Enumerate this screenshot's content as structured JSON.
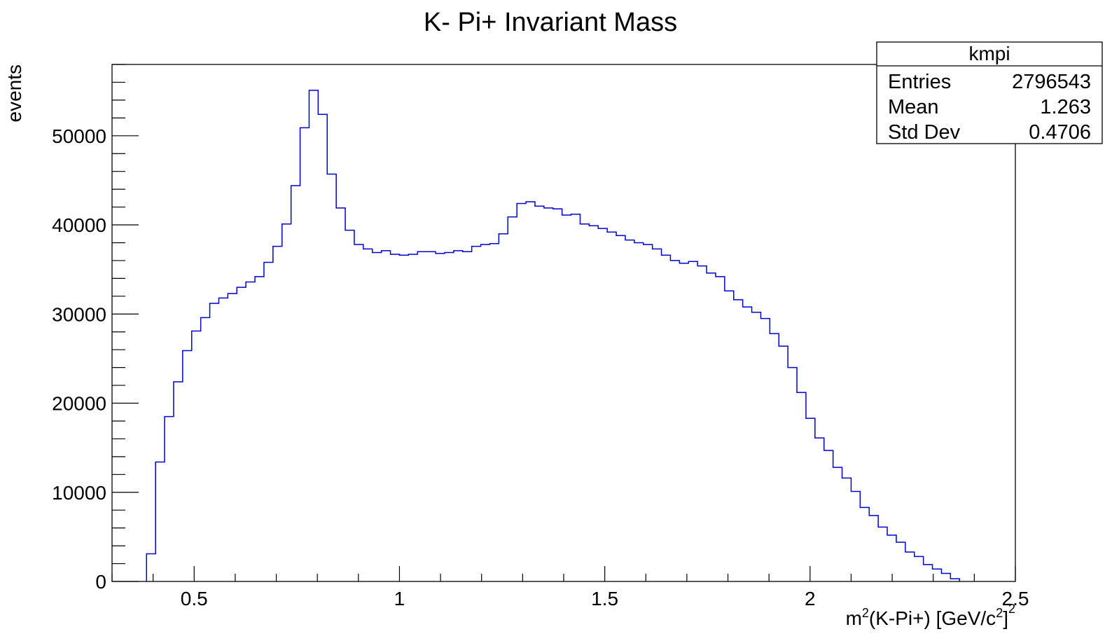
{
  "chart_data": {
    "type": "histogram",
    "title": "K- Pi+ Invariant Mass",
    "xlabel": {
      "parts": [
        "m",
        "2",
        "(K-Pi+) [GeV/c",
        "2",
        "]",
        "2"
      ]
    },
    "ylabel": "events",
    "xlim": [
      0.3,
      2.5
    ],
    "ylim": [
      0,
      58000
    ],
    "x_ticks": [
      {
        "value": 0.5,
        "label": "0.5"
      },
      {
        "value": 1.0,
        "label": "1"
      },
      {
        "value": 1.5,
        "label": "1.5"
      },
      {
        "value": 2.0,
        "label": "2"
      },
      {
        "value": 2.5,
        "label": "2.5"
      }
    ],
    "y_ticks": [
      {
        "value": 0,
        "label": "0"
      },
      {
        "value": 10000,
        "label": "10000"
      },
      {
        "value": 20000,
        "label": "20000"
      },
      {
        "value": 30000,
        "label": "30000"
      },
      {
        "value": 40000,
        "label": "40000"
      },
      {
        "value": 50000,
        "label": "50000"
      }
    ],
    "x_minor_step": 0.1,
    "y_minor_step": 2000,
    "line_color": "#0000cc",
    "bin_width": 0.022,
    "bin_start": 0.384,
    "bin_values": [
      3100,
      13400,
      18500,
      22400,
      25900,
      28100,
      29600,
      31200,
      31800,
      32300,
      33000,
      33600,
      34200,
      35800,
      37600,
      40100,
      44400,
      50900,
      55100,
      52400,
      45700,
      41900,
      39400,
      37800,
      37300,
      36900,
      37100,
      36700,
      36600,
      36700,
      37000,
      37000,
      36800,
      36900,
      37100,
      37000,
      37600,
      37800,
      37900,
      39000,
      40900,
      42400,
      42600,
      42100,
      41900,
      41800,
      41100,
      41200,
      40100,
      39900,
      39600,
      39200,
      38800,
      38300,
      38000,
      37800,
      37300,
      36600,
      36000,
      35700,
      35900,
      35400,
      34600,
      34200,
      32600,
      31600,
      30800,
      30200,
      29500,
      27800,
      26400,
      24000,
      21200,
      18300,
      16100,
      14700,
      12800,
      11600,
      10100,
      8300,
      7400,
      6100,
      5200,
      4400,
      3300,
      2800,
      1900,
      1400,
      900,
      300
    ]
  },
  "stats_box": {
    "title": "kmpi",
    "rows": [
      {
        "label": "Entries",
        "value": "2796543"
      },
      {
        "label": "Mean",
        "value": "1.263"
      },
      {
        "label": "Std Dev",
        "value": "0.4706"
      }
    ]
  }
}
